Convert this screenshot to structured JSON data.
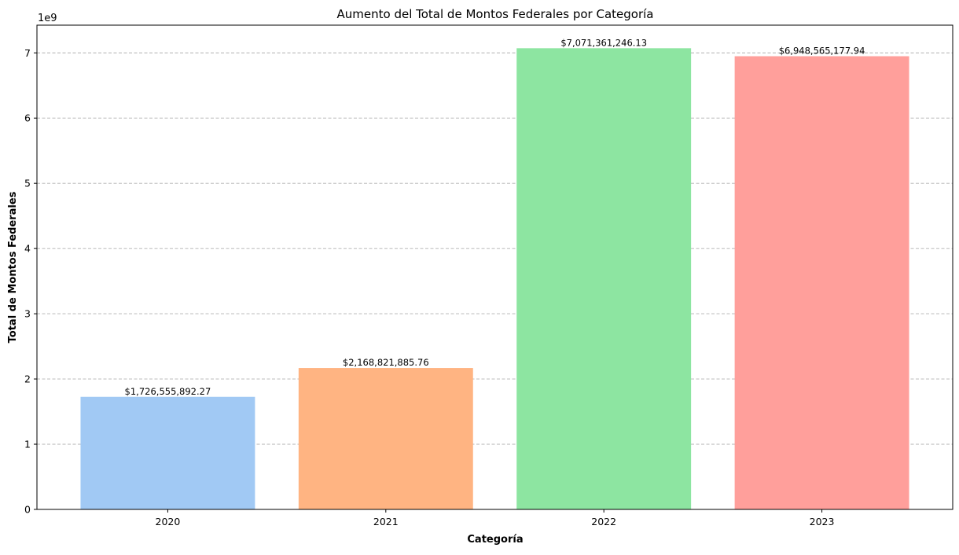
{
  "chart_data": {
    "type": "bar",
    "title": "Aumento del Total de Montos Federales por Categoría",
    "xlabel": "Categoría",
    "ylabel": "Total de Montos Federales",
    "y_multiplier_label": "1e9",
    "categories": [
      "2020",
      "2021",
      "2022",
      "2023"
    ],
    "values": [
      1726555892.27,
      2168821885.76,
      7071361246.13,
      6948565177.94
    ],
    "value_labels": [
      "$1,726,555,892.27",
      "$2,168,821,885.76",
      "$7,071,361,246.13",
      "$6,948,565,177.94"
    ],
    "bar_colors": [
      "#a1c9f4",
      "#ffb482",
      "#8de5a1",
      "#ff9f9b"
    ],
    "ylim": [
      0,
      7424929308.44
    ],
    "y_ticks": [
      0,
      1,
      2,
      3,
      4,
      5,
      6,
      7
    ],
    "y_tick_scale": 1000000000,
    "grid": "y-dashed",
    "grid_color": "#b0b0b0"
  }
}
